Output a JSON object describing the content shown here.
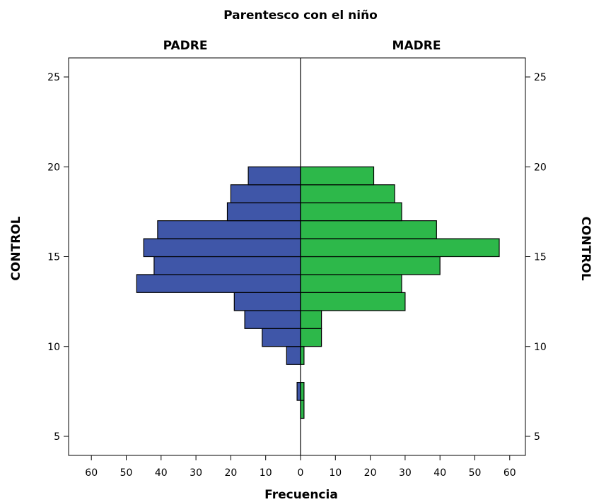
{
  "chart_data": {
    "type": "bar",
    "title": "Parentesco con el niño",
    "xlabel": "Frecuencia",
    "ylabel": "CONTROL",
    "ylabel_right": "CONTROL",
    "orientation": "horizontal",
    "panels": [
      {
        "label": "PADRE",
        "side": "left"
      },
      {
        "label": "MADRE",
        "side": "right"
      }
    ],
    "xlim": [
      0,
      65
    ],
    "ylim": [
      4,
      27
    ],
    "x_ticks": [
      0,
      10,
      20,
      30,
      40,
      50,
      60
    ],
    "y_ticks": [
      5,
      10,
      15,
      20,
      25
    ],
    "bin_width": 1,
    "series": [
      {
        "name": "PADRE",
        "color": "#3f56a8",
        "bins": [
          {
            "y": 9.5,
            "value": 4
          },
          {
            "y": 10.5,
            "value": 11
          },
          {
            "y": 11.5,
            "value": 16
          },
          {
            "y": 12.5,
            "value": 19
          },
          {
            "y": 13.5,
            "value": 47
          },
          {
            "y": 14.5,
            "value": 42
          },
          {
            "y": 15.5,
            "value": 45
          },
          {
            "y": 16.5,
            "value": 41
          },
          {
            "y": 17.5,
            "value": 21
          },
          {
            "y": 18.5,
            "value": 20
          },
          {
            "y": 19.5,
            "value": 15
          },
          {
            "y": 7.5,
            "value": 1
          }
        ]
      },
      {
        "name": "MADRE",
        "color": "#2db84a",
        "bins": [
          {
            "y": 6.5,
            "value": 1
          },
          {
            "y": 7.5,
            "value": 1
          },
          {
            "y": 9.5,
            "value": 1
          },
          {
            "y": 10.5,
            "value": 6
          },
          {
            "y": 11.5,
            "value": 6
          },
          {
            "y": 12.5,
            "value": 30
          },
          {
            "y": 13.5,
            "value": 29
          },
          {
            "y": 14.5,
            "value": 40
          },
          {
            "y": 15.5,
            "value": 57
          },
          {
            "y": 16.5,
            "value": 39
          },
          {
            "y": 17.5,
            "value": 29
          },
          {
            "y": 18.5,
            "value": 27
          },
          {
            "y": 19.5,
            "value": 21
          }
        ]
      }
    ],
    "grid": false
  }
}
